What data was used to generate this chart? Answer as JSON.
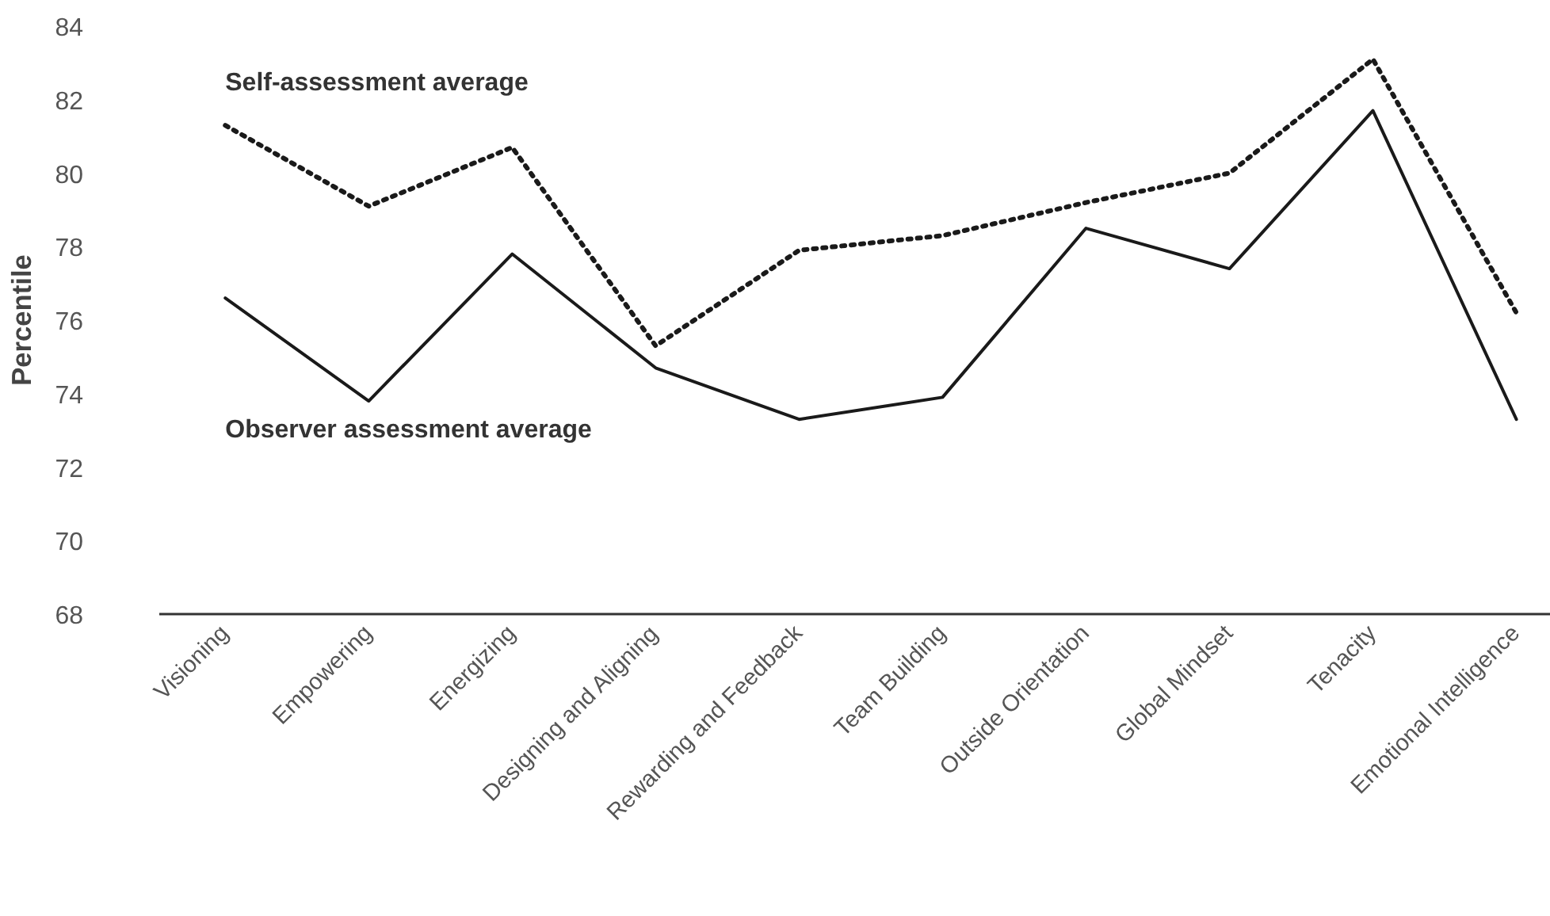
{
  "chart_data": {
    "type": "line",
    "ylabel": "Percentile",
    "categories": [
      "Visioning",
      "Empowering",
      "Energizing",
      "Designing and Aligning",
      "Rewarding and Feedback",
      "Team Building",
      "Outside Orientation",
      "Global Mindset",
      "Tenacity",
      "Emotional Intelligence"
    ],
    "series": [
      {
        "name": "Self-assessment average",
        "color": "#1a1a1a",
        "line_style": "dotted",
        "values": [
          81.3,
          79.1,
          80.7,
          75.3,
          77.9,
          78.3,
          79.2,
          80.0,
          83.1,
          76.2
        ]
      },
      {
        "name": "Observer assessment average",
        "color": "#1a1a1a",
        "line_style": "solid",
        "values": [
          76.6,
          73.8,
          77.8,
          74.7,
          73.3,
          73.9,
          78.5,
          77.4,
          81.7,
          73.3
        ]
      }
    ],
    "ylim": [
      68,
      84
    ],
    "yticks": [
      68,
      70,
      72,
      74,
      76,
      78,
      80,
      82,
      84
    ],
    "grid": false,
    "marker": "none"
  }
}
